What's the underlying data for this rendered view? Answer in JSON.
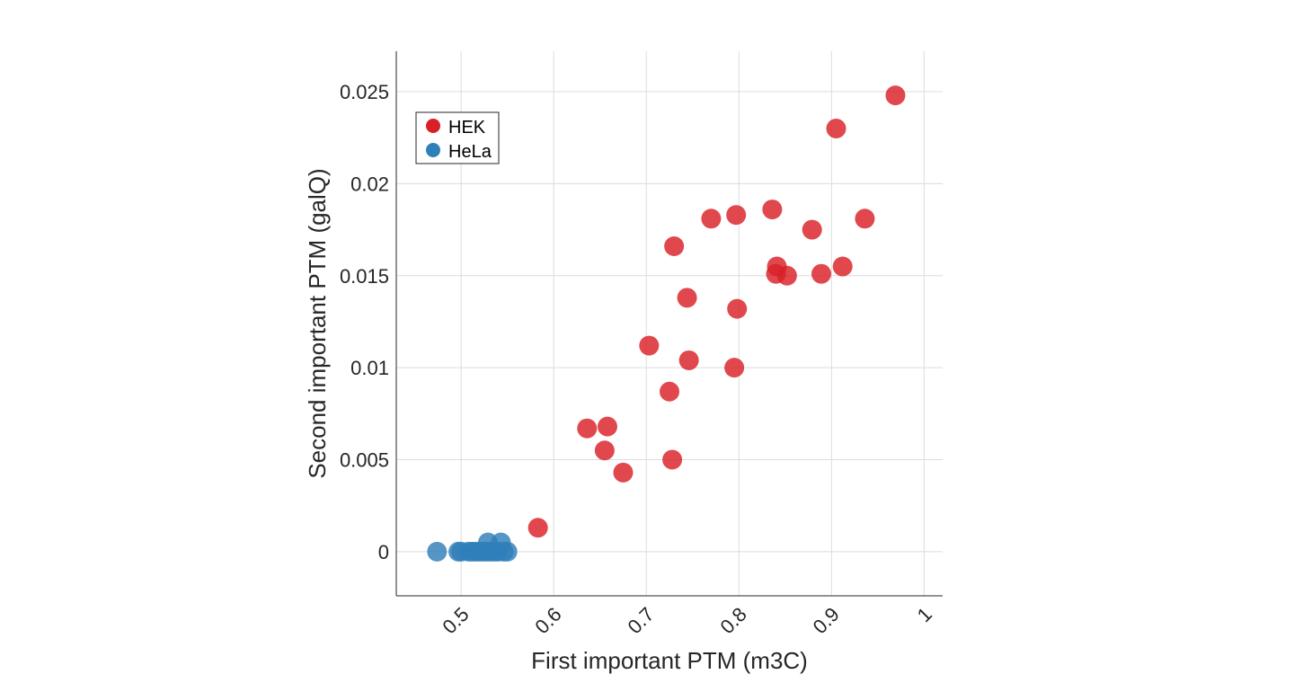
{
  "chart_data": {
    "type": "scatter",
    "title": "",
    "xlabel": "First important PTM (m3C)",
    "ylabel": "Second important PTM (galQ)",
    "xlim": [
      0.43,
      1.02
    ],
    "ylim": [
      -0.0024,
      0.0272
    ],
    "x_ticks": [
      0.5,
      0.6,
      0.7,
      0.8,
      0.9,
      1
    ],
    "x_tick_labels": [
      "0.5",
      "0.6",
      "0.7",
      "0.8",
      "0.9",
      "1"
    ],
    "y_ticks": [
      0,
      0.005,
      0.01,
      0.015,
      0.02,
      0.025
    ],
    "y_tick_labels": [
      "0",
      "0.005",
      "0.01",
      "0.015",
      "0.02",
      "0.025"
    ],
    "grid": true,
    "legend_position": "top-left",
    "series": [
      {
        "name": "HEK",
        "color": "#d92027",
        "points": [
          [
            0.583,
            0.0013
          ],
          [
            0.636,
            0.0067
          ],
          [
            0.655,
            0.0055
          ],
          [
            0.658,
            0.0068
          ],
          [
            0.675,
            0.0043
          ],
          [
            0.703,
            0.0112
          ],
          [
            0.725,
            0.0087
          ],
          [
            0.728,
            0.005
          ],
          [
            0.73,
            0.0166
          ],
          [
            0.744,
            0.0138
          ],
          [
            0.746,
            0.0104
          ],
          [
            0.77,
            0.0181
          ],
          [
            0.795,
            0.01
          ],
          [
            0.797,
            0.0183
          ],
          [
            0.798,
            0.0132
          ],
          [
            0.836,
            0.0186
          ],
          [
            0.84,
            0.0151
          ],
          [
            0.841,
            0.0155
          ],
          [
            0.852,
            0.015
          ],
          [
            0.879,
            0.0175
          ],
          [
            0.889,
            0.0151
          ],
          [
            0.905,
            0.023
          ],
          [
            0.912,
            0.0155
          ],
          [
            0.936,
            0.0181
          ],
          [
            0.969,
            0.0248
          ]
        ]
      },
      {
        "name": "HeLa",
        "color": "#2f7fba",
        "points": [
          [
            0.474,
            0
          ],
          [
            0.497,
            0
          ],
          [
            0.5,
            0
          ],
          [
            0.508,
            0
          ],
          [
            0.512,
            0
          ],
          [
            0.516,
            0
          ],
          [
            0.52,
            0
          ],
          [
            0.524,
            0
          ],
          [
            0.528,
            0
          ],
          [
            0.529,
            0.0005
          ],
          [
            0.532,
            0
          ],
          [
            0.536,
            0
          ],
          [
            0.54,
            0
          ],
          [
            0.543,
            0.0005
          ],
          [
            0.546,
            0
          ],
          [
            0.55,
            0
          ]
        ]
      }
    ]
  }
}
